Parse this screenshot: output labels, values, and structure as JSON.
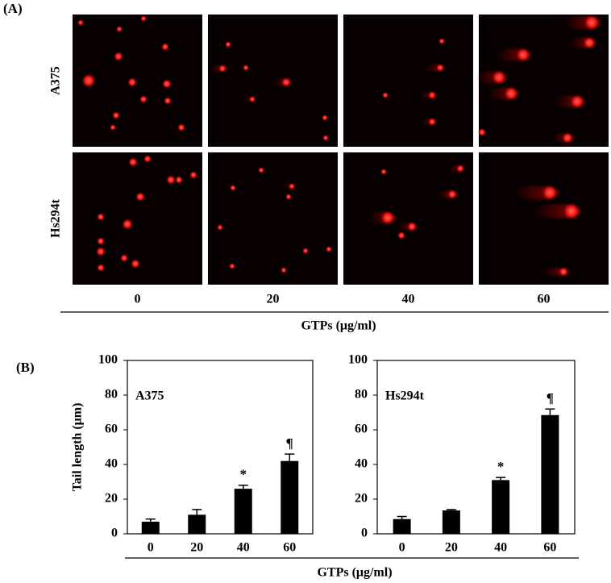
{
  "panel_a": {
    "label": "(A)",
    "rows": [
      "A375",
      "Hs294t"
    ],
    "columns": [
      "0",
      "20",
      "40",
      "60"
    ],
    "xlabel": "GTPs (μg/ml)"
  },
  "panel_b": {
    "label": "(B)",
    "xlabel": "GTPs (μg/ml)"
  },
  "chart_data": [
    {
      "type": "bar",
      "title": "A375",
      "ylabel": "Tail length (μm)",
      "categories": [
        "0",
        "20",
        "40",
        "60"
      ],
      "values": [
        7,
        11,
        26,
        42
      ],
      "errors": [
        1.5,
        3,
        2,
        4
      ],
      "annotations": [
        null,
        null,
        "*",
        "¶"
      ],
      "color": "#000000",
      "ylim": [
        0,
        100
      ],
      "yticks": [
        0,
        20,
        40,
        60,
        80,
        100
      ]
    },
    {
      "type": "bar",
      "title": "Hs294t",
      "categories": [
        "0",
        "20",
        "40",
        "60"
      ],
      "values": [
        8.5,
        13.5,
        31,
        68.5
      ],
      "errors": [
        1.5,
        0.5,
        1.5,
        3.5
      ],
      "annotations": [
        null,
        null,
        "*",
        "¶"
      ],
      "color": "#000000",
      "ylim": [
        0,
        100
      ],
      "yticks": [
        0,
        20,
        40,
        60,
        80,
        100
      ]
    }
  ]
}
